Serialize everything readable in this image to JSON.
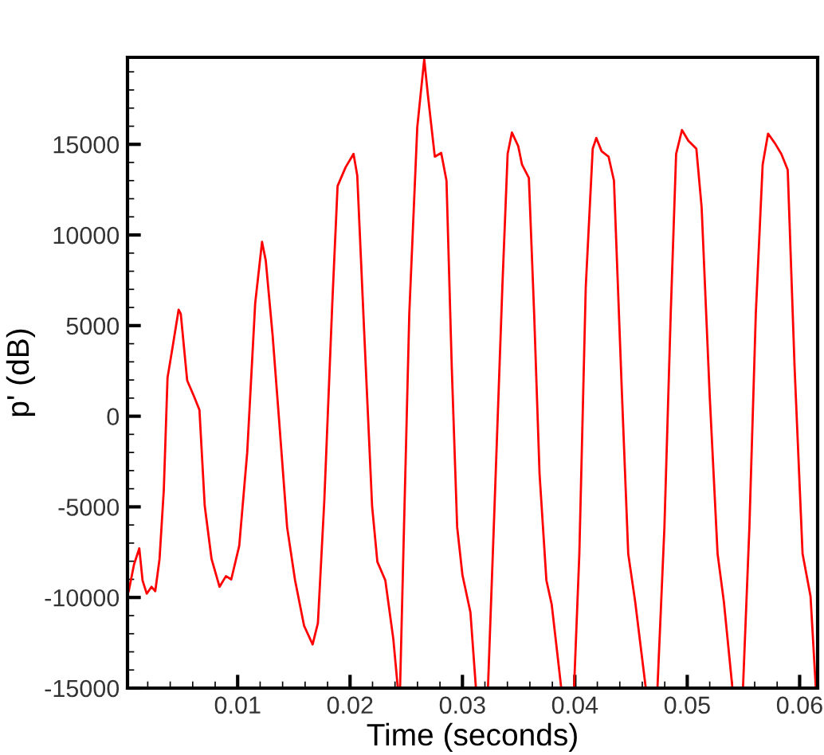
{
  "chart_data": {
    "type": "line",
    "xlabel": "Time (seconds)",
    "ylabel": "p' (dB)",
    "xlim": [
      0.0002,
      0.0616
    ],
    "xticks": [
      0.01,
      0.02,
      0.03,
      0.04,
      0.05,
      0.06
    ],
    "ylim": [
      -15000,
      19800
    ],
    "yticks": [
      -15000,
      -10000,
      -5000,
      0,
      5000,
      10000,
      15000
    ],
    "grid": false,
    "marker": "none",
    "line_style": "solid",
    "series": [
      {
        "color": "#ff0000",
        "x": [
          0.00031,
          0.00078,
          0.00125,
          0.00154,
          0.00191,
          0.00234,
          0.00267,
          0.00305,
          0.00343,
          0.00376,
          0.00423,
          0.00475,
          0.00494,
          0.00551,
          0.00612,
          0.0066,
          0.00707,
          0.00768,
          0.00839,
          0.00896,
          0.00943,
          0.01014,
          0.01085,
          0.01156,
          0.01217,
          0.0125,
          0.01311,
          0.01369,
          0.0144,
          0.01511,
          0.01591,
          0.01667,
          0.01714,
          0.01771,
          0.01842,
          0.01889,
          0.0196,
          0.02031,
          0.02064,
          0.02125,
          0.02196,
          0.02243,
          0.02314,
          0.02385,
          0.02425,
          0.02435,
          0.02445,
          0.0248,
          0.02527,
          0.02598,
          0.0266,
          0.02693,
          0.02754,
          0.02811,
          0.02858,
          0.02905,
          0.02953,
          0.03,
          0.03071,
          0.0312,
          0.0317,
          0.03227,
          0.03284,
          0.03355,
          0.03402,
          0.0344,
          0.03496,
          0.0353,
          0.03591,
          0.03638,
          0.03686,
          0.03747,
          0.03794,
          0.03851,
          0.03879,
          0.0393,
          0.03993,
          0.0404,
          0.04097,
          0.04159,
          0.04191,
          0.04238,
          0.043,
          0.04348,
          0.04419,
          0.04475,
          0.04537,
          0.04631,
          0.0468,
          0.04735,
          0.04797,
          0.04853,
          0.04901,
          0.04953,
          0.0501,
          0.05081,
          0.05128,
          0.05199,
          0.0527,
          0.05326,
          0.05402,
          0.0545,
          0.05496,
          0.05553,
          0.0561,
          0.05671,
          0.05719,
          0.0578,
          0.05837,
          0.05894,
          0.05955,
          0.06026,
          0.06097,
          0.06144
        ],
        "values": [
          -9650,
          -8180,
          -7290,
          -9060,
          -9790,
          -9410,
          -9650,
          -7880,
          -4060,
          2120,
          3880,
          5880,
          5650,
          1970,
          1090,
          350,
          -4940,
          -7880,
          -9410,
          -8820,
          -9000,
          -7150,
          -2000,
          6230,
          9620,
          8590,
          4470,
          -240,
          -6120,
          -9060,
          -11560,
          -12590,
          -11410,
          -4650,
          6230,
          12700,
          13730,
          14470,
          13290,
          4760,
          -4940,
          -8030,
          -9060,
          -12290,
          -15000,
          null,
          -15000,
          -6120,
          5650,
          15940,
          19700,
          17700,
          14320,
          14530,
          13000,
          2710,
          -6120,
          -8760,
          -10820,
          -15000,
          null,
          -15000,
          -5230,
          7120,
          14470,
          15650,
          14910,
          13880,
          13150,
          5650,
          -3180,
          -9060,
          -10380,
          -13470,
          -15000,
          null,
          -15000,
          -7590,
          7120,
          14760,
          15350,
          14620,
          14320,
          13000,
          1240,
          -7590,
          -10240,
          -15000,
          null,
          -15000,
          -6120,
          5650,
          14470,
          15790,
          15200,
          14760,
          11530,
          1240,
          -7590,
          -10240,
          -15000,
          null,
          -15000,
          -6120,
          5650,
          13880,
          15590,
          15060,
          14470,
          13590,
          2710,
          -7590,
          -9940,
          -15000
        ]
      }
    ]
  }
}
